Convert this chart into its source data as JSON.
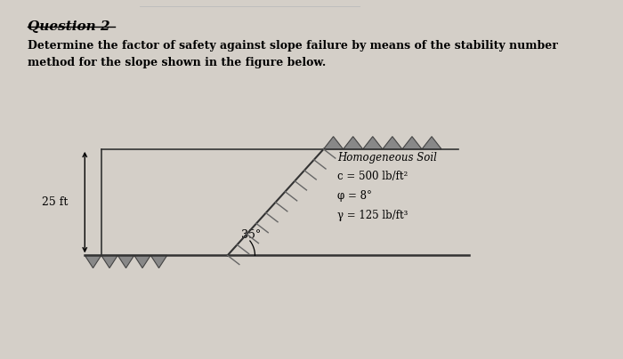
{
  "title": "Question 2",
  "description_line1": "Determine the factor of safety against slope failure by means of the stability number",
  "description_line2": "method for the slope shown in the figure below.",
  "background_color": "#d4cfc8",
  "paper_color": "#eeebe4",
  "height_label": "25 ft",
  "angle_label": "35°",
  "soil_label_line1": "Homogeneous Soil",
  "soil_label_line2": "c = 500 lb/ft²",
  "soil_label_line3": "φ = 8°",
  "soil_label_line4": "γ = 125 lb/ft³",
  "line_color": "#333333",
  "hatch_color": "#666666"
}
